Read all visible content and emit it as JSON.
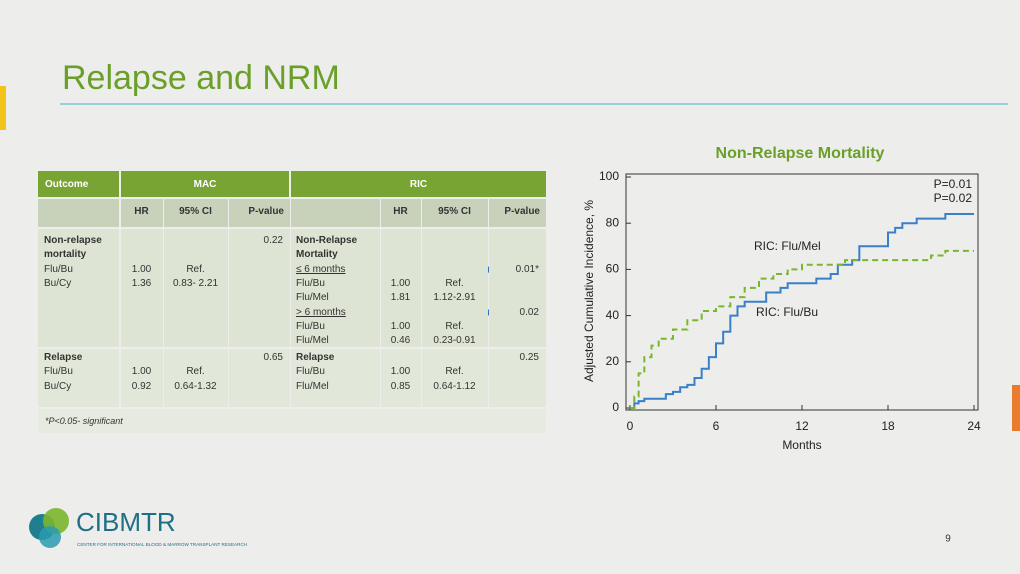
{
  "header": {
    "title": "Relapse and NRM"
  },
  "table": {
    "header": {
      "outcome": "Outcome",
      "mac": "MAC",
      "ric": "RIC"
    },
    "subheader": {
      "mac": [
        "HR",
        "95% CI",
        "P-value"
      ],
      "ric": [
        "HR",
        "95% CI",
        "P-value"
      ]
    },
    "rows": [
      {
        "outcome": "Non-relapse mortality",
        "groups": [
          "Flu/Bu",
          "Bu/Cy"
        ],
        "mac": {
          "hr": [
            "1.00",
            "1.36"
          ],
          "ci": [
            "Ref.",
            "0.83- 2.21"
          ],
          "p": "0.22"
        },
        "ric": {
          "outcome": "Non-Relapse Mortality",
          "periods": [
            {
              "label": "≤ 6 months",
              "groups": [
                "Flu/Bu",
                "Flu/Mel"
              ],
              "hr": [
                "1.00",
                "1.81"
              ],
              "ci": [
                "Ref.",
                "1.12-2.91"
              ],
              "p": "0.01*"
            },
            {
              "label": "> 6 months",
              "groups": [
                "Flu/Bu",
                "Flu/Mel"
              ],
              "hr": [
                "1.00",
                "0.46"
              ],
              "ci": [
                "Ref.",
                "0.23-0.91"
              ],
              "p": "0.02"
            }
          ]
        }
      },
      {
        "outcome": "Relapse",
        "groups": [
          "Flu/Bu",
          "Bu/Cy"
        ],
        "mac": {
          "hr": [
            "1.00",
            "0.92"
          ],
          "ci": [
            "Ref.",
            "0.64-1.32"
          ],
          "p": "0.65"
        },
        "ric": {
          "outcome": "Relapse",
          "groups": [
            "Flu/Bu",
            "Flu/Mel"
          ],
          "hr": [
            "1.00",
            "0.85"
          ],
          "ci": [
            "Ref.",
            "0.64-1.12"
          ],
          "p": "0.25"
        }
      }
    ],
    "footnote": "*P<0.05- significant"
  },
  "chart_data": {
    "type": "line",
    "title": "Non-Relapse Mortality",
    "x_label": "Months",
    "y_label": "Adjusted Cumulative Incidence, %",
    "xlim": [
      0,
      24
    ],
    "xticks": [
      0,
      6,
      12,
      18,
      24
    ],
    "ylim": [
      0,
      100
    ],
    "yticks": [
      0,
      20,
      40,
      60,
      80,
      100
    ],
    "annotations": [
      "P=0.01",
      "P=0.02"
    ],
    "series": [
      {
        "name": "RIC: Flu/Bu",
        "color": "#3a7fc9",
        "dashed": false,
        "x": [
          0,
          0.3,
          0.3,
          0.6,
          0.6,
          1,
          1,
          2.5,
          2.5,
          3,
          3,
          3.5,
          3.5,
          4,
          4,
          4.5,
          4.5,
          5,
          5,
          5.5,
          5.5,
          6,
          6,
          6.5,
          6.5,
          7,
          7,
          7.5,
          7.5,
          8,
          8,
          9.5,
          9.5,
          10.5,
          10.5,
          11,
          11,
          13,
          13,
          14,
          14,
          14.5,
          14.5,
          15.5,
          15.5,
          16,
          16,
          18,
          18,
          18.5,
          18.5,
          19,
          19,
          20,
          20,
          22,
          22,
          24
        ],
        "values": [
          0,
          0,
          2,
          2,
          3,
          3,
          4,
          4,
          6,
          6,
          7,
          7,
          9,
          9,
          10,
          10,
          13,
          13,
          17,
          17,
          22,
          22,
          28,
          28,
          33,
          33,
          40,
          40,
          44,
          44,
          46,
          46,
          50,
          50,
          52,
          52,
          54,
          54,
          56,
          56,
          58,
          58,
          62,
          62,
          64,
          64,
          70,
          70,
          76,
          76,
          78,
          78,
          80,
          80,
          82,
          82,
          84,
          84
        ]
      },
      {
        "name": "RIC: Flu/Mel",
        "color": "#7ab52e",
        "dashed": true,
        "x": [
          0,
          0.3,
          0.3,
          0.6,
          0.6,
          1,
          1,
          1.5,
          1.5,
          2,
          2,
          3,
          3,
          4,
          4,
          5,
          5,
          6,
          6,
          7,
          7,
          8,
          8,
          9,
          9,
          10,
          10,
          11,
          11,
          12,
          12,
          15,
          15,
          21,
          21,
          22,
          22,
          24
        ],
        "values": [
          0,
          0,
          5,
          5,
          15,
          15,
          22,
          22,
          27,
          27,
          30,
          30,
          34,
          34,
          38,
          38,
          42,
          42,
          44,
          44,
          48,
          48,
          52,
          52,
          56,
          56,
          58,
          58,
          60,
          60,
          62,
          62,
          64,
          64,
          66,
          66,
          68,
          68
        ]
      }
    ]
  },
  "logo": {
    "name": "CIBMTR",
    "tagline": "CENTER FOR INTERNATIONAL BLOOD & MARROW TRANSPLANT RESEARCH"
  },
  "page_number": "9"
}
